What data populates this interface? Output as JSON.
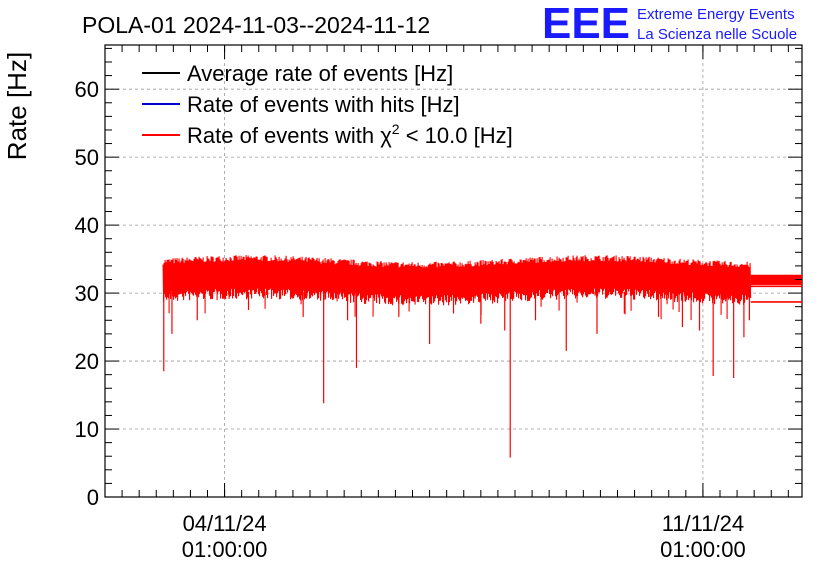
{
  "chart_data": {
    "type": "line",
    "title": "POLA-01 2024-11-03--2024-11-12",
    "ylabel": "Rate [Hz]",
    "xlabel": "",
    "ylim": [
      0,
      66.5
    ],
    "y_ticks": [
      0,
      10,
      20,
      30,
      40,
      50,
      60
    ],
    "x_range_days": [
      0,
      10.2
    ],
    "x_ticks": [
      {
        "day": 1.75,
        "date": "04/11/24",
        "time": "01:00:00"
      },
      {
        "day": 8.75,
        "date": "11/11/24",
        "time": "01:00:00"
      }
    ],
    "grid": true,
    "legend_position": "top-left",
    "legend": [
      {
        "label": "Average rate of events [Hz]",
        "color": "#000000"
      },
      {
        "label": "Rate of events with hits [Hz]",
        "color": "#0000cc"
      },
      {
        "label_prefix": "Rate of events with ",
        "label_symbol": "χ",
        "label_sup": "2",
        "label_suffix": " < 10.0 [Hz]",
        "color": "#ff0000"
      }
    ],
    "series": [
      {
        "name": "Rate of events with χ2 < 10.0 [Hz]",
        "color": "#ff0000",
        "data_start_day": 0.85,
        "data_end_day": 9.45,
        "band_low": 30.2,
        "band_high": 34.2,
        "mean": 32.0,
        "dips": [
          {
            "day": 0.86,
            "value": 18.5
          },
          {
            "day": 0.98,
            "value": 24.0
          },
          {
            "day": 1.35,
            "value": 26.0
          },
          {
            "day": 2.1,
            "value": 27.5
          },
          {
            "day": 2.9,
            "value": 26.5
          },
          {
            "day": 3.2,
            "value": 13.8
          },
          {
            "day": 3.55,
            "value": 26.0
          },
          {
            "day": 3.68,
            "value": 19.0
          },
          {
            "day": 4.3,
            "value": 26.5
          },
          {
            "day": 4.75,
            "value": 22.5
          },
          {
            "day": 5.1,
            "value": 27.0
          },
          {
            "day": 5.5,
            "value": 25.5
          },
          {
            "day": 5.85,
            "value": 24.5
          },
          {
            "day": 5.93,
            "value": 5.8
          },
          {
            "day": 6.3,
            "value": 26.0
          },
          {
            "day": 6.75,
            "value": 21.5
          },
          {
            "day": 7.2,
            "value": 24.0
          },
          {
            "day": 7.6,
            "value": 27.0
          },
          {
            "day": 8.1,
            "value": 26.5
          },
          {
            "day": 8.45,
            "value": 25.0
          },
          {
            "day": 8.7,
            "value": 24.5
          },
          {
            "day": 8.9,
            "value": 17.8
          },
          {
            "day": 9.2,
            "value": 17.5
          },
          {
            "day": 9.35,
            "value": 23.5
          },
          {
            "day": 9.43,
            "value": 26.0
          }
        ],
        "tail": [
          {
            "from_day": 9.45,
            "to_day": 10.2,
            "value": 31.0
          },
          {
            "from_day": 9.45,
            "to_day": 10.2,
            "value": 32.5
          },
          {
            "from_day": 9.45,
            "to_day": 10.2,
            "value": 28.7
          }
        ]
      }
    ]
  },
  "logo": {
    "text": "EEE",
    "line1": "Extreme Energy Events",
    "line2": "La Scienza nelle Scuole",
    "color": "#1a1aff"
  }
}
